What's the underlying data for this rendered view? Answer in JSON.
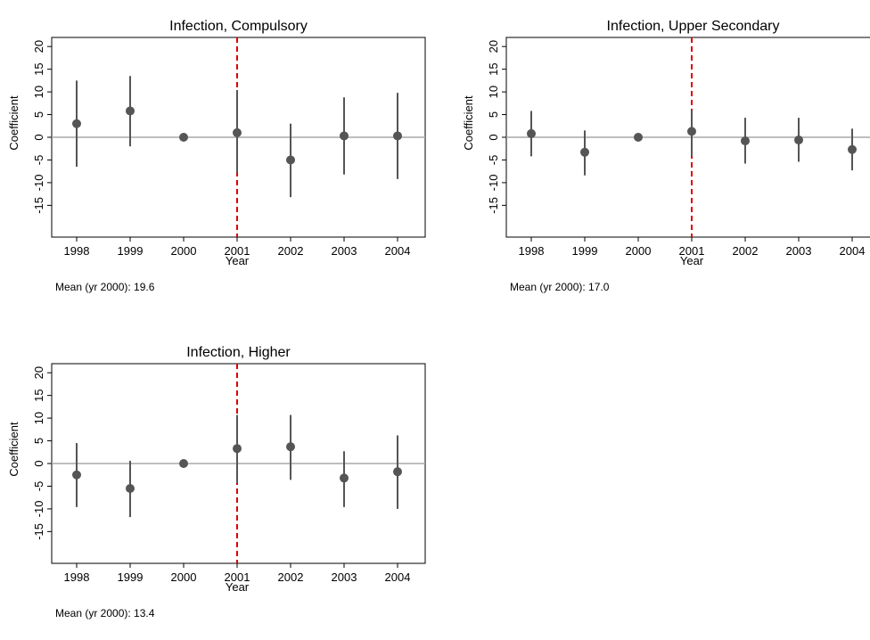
{
  "chart_data": [
    {
      "type": "scatter",
      "title": "Infection, Compulsory",
      "xlabel": "Year",
      "ylabel": "Coefficient",
      "x": [
        "1998",
        "1999",
        "2000",
        "2001",
        "2002",
        "2003",
        "2004"
      ],
      "estimates": [
        3.0,
        5.8,
        0.0,
        1.0,
        -5.0,
        0.3,
        0.3
      ],
      "ci_lower": [
        -6.5,
        -2.0,
        0.0,
        -7.8,
        -13.2,
        -8.2,
        -9.2
      ],
      "ci_upper": [
        12.5,
        13.5,
        0.0,
        10.4,
        3.0,
        8.8,
        9.8
      ],
      "yticks": [
        20,
        15,
        10,
        5,
        0,
        -5,
        -10,
        -15
      ],
      "ytick_labels": [
        "20",
        "15",
        "10",
        "5",
        "0",
        "-5",
        "-10",
        "-15"
      ],
      "ylim": [
        -22,
        22
      ],
      "reference_year": "2001",
      "note": "Mean (yr 2000): 19.6"
    },
    {
      "type": "scatter",
      "title": "Infection, Upper Secondary",
      "xlabel": "Year",
      "ylabel": "Coefficient",
      "x": [
        "1998",
        "1999",
        "2000",
        "2001",
        "2002",
        "2003",
        "2004"
      ],
      "estimates": [
        0.8,
        -3.3,
        0.0,
        1.3,
        -0.8,
        -0.6,
        -2.7
      ],
      "ci_lower": [
        -4.2,
        -8.4,
        0.0,
        -4.2,
        -5.8,
        -5.4,
        -7.3
      ],
      "ci_upper": [
        5.8,
        1.5,
        0.0,
        6.0,
        4.3,
        4.3,
        1.9
      ],
      "yticks": [
        20,
        15,
        10,
        5,
        0,
        -5,
        -10,
        -15
      ],
      "ytick_labels": [
        "20",
        "15",
        "10",
        "5",
        "0",
        "-5",
        "-10",
        "-15"
      ],
      "ylim": [
        -22,
        22
      ],
      "reference_year": "2001",
      "note": "Mean (yr 2000): 17.0"
    },
    {
      "type": "scatter",
      "title": "Infection, Higher",
      "xlabel": "Year",
      "ylabel": "Coefficient",
      "x": [
        "1998",
        "1999",
        "2000",
        "2001",
        "2002",
        "2003",
        "2004"
      ],
      "estimates": [
        -2.5,
        -5.5,
        0.0,
        3.3,
        3.7,
        -3.2,
        -1.8
      ],
      "ci_lower": [
        -9.6,
        -11.8,
        0.0,
        -4.3,
        -3.6,
        -9.6,
        -10.0
      ],
      "ci_upper": [
        4.5,
        0.6,
        0.0,
        10.7,
        10.7,
        2.7,
        6.2
      ],
      "yticks": [
        20,
        15,
        10,
        5,
        0,
        -5,
        -10,
        -15
      ],
      "ytick_labels": [
        "20",
        "15",
        "10",
        "5",
        "0",
        "-5",
        "-10",
        "-15"
      ],
      "ylim": [
        -22,
        22
      ],
      "reference_year": "2001",
      "note": "Mean (yr 2000): 13.4"
    }
  ],
  "colors": {
    "point": "#555555",
    "ci_line": "#555555",
    "zero_line": "#a8a8a8",
    "reference_line": "#dd0000",
    "axis": "#000000"
  }
}
